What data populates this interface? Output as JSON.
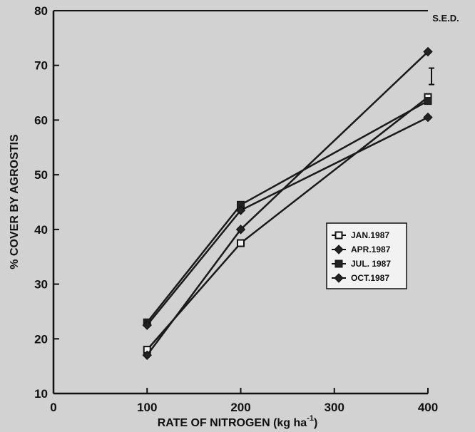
{
  "chart_data": {
    "type": "line",
    "title": "",
    "xlabel": "RATE OF NITROGEN (kg ha",
    "xlabel_superscript": "-1",
    "xlabel_suffix": ")",
    "ylabel": "% COVER BY AGROSTIS",
    "xlim": [
      0,
      400
    ],
    "ylim": [
      10,
      80
    ],
    "x_ticks": [
      0,
      100,
      200,
      300,
      400
    ],
    "y_ticks": [
      10,
      20,
      30,
      40,
      50,
      60,
      70,
      80
    ],
    "x": [
      100,
      200,
      400
    ],
    "grid": false,
    "legend_position": "right-center",
    "series": [
      {
        "name": "JAN.1987",
        "marker": "open-square",
        "values": [
          18,
          37.5,
          64.2
        ]
      },
      {
        "name": "APR.1987",
        "marker": "filled-diamond",
        "values": [
          17,
          40,
          72.5
        ]
      },
      {
        "name": "JUL. 1987",
        "marker": "filled-square",
        "values": [
          23,
          44.5,
          63.5
        ]
      },
      {
        "name": "OCT.1987",
        "marker": "filled-diamond",
        "values": [
          22.5,
          43.5,
          60.5
        ]
      }
    ],
    "annotation": {
      "label": "S.E.D.",
      "error_bar_value": [
        66.5,
        69.5
      ]
    }
  }
}
